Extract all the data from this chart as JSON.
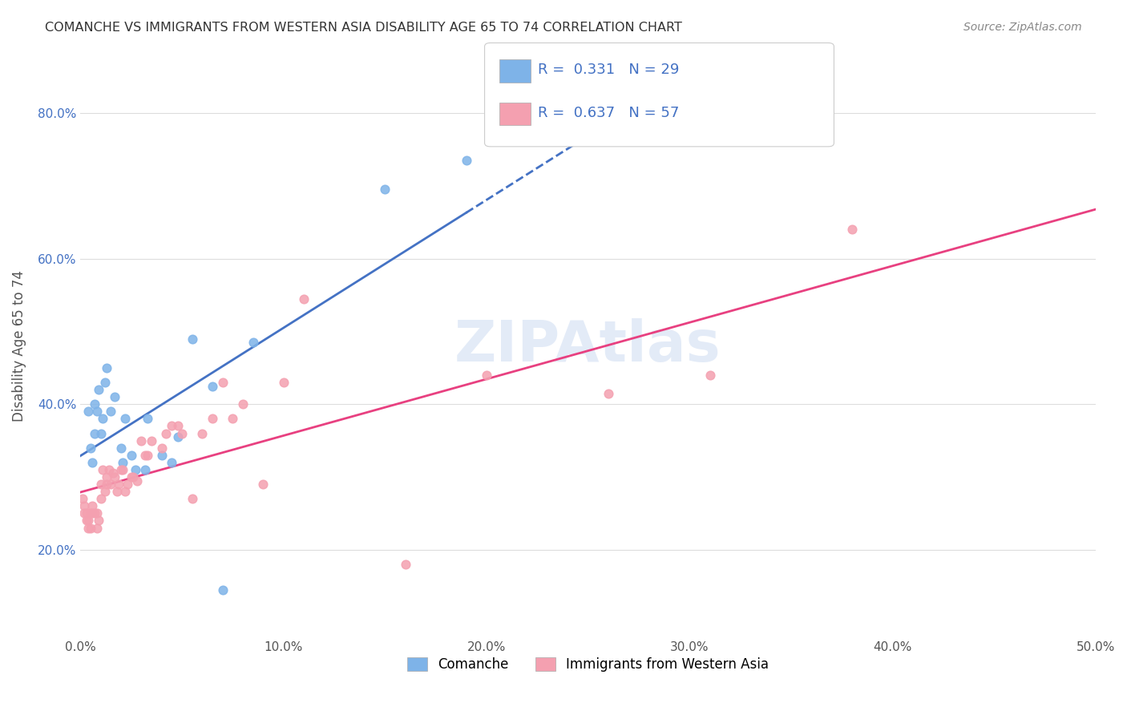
{
  "title": "COMANCHE VS IMMIGRANTS FROM WESTERN ASIA DISABILITY AGE 65 TO 74 CORRELATION CHART",
  "source": "Source: ZipAtlas.com",
  "xlabel": "",
  "ylabel": "Disability Age 65 to 74",
  "xlim": [
    0.0,
    0.5
  ],
  "ylim": [
    0.08,
    0.88
  ],
  "x_ticks": [
    0.0,
    0.1,
    0.2,
    0.3,
    0.4,
    0.5
  ],
  "x_tick_labels": [
    "0.0%",
    "10.0%",
    "20.0%",
    "30.0%",
    "40.0%",
    "50.0%"
  ],
  "y_ticks": [
    0.2,
    0.4,
    0.6,
    0.8
  ],
  "y_tick_labels": [
    "20.0%",
    "40.0%",
    "60.0%",
    "80.0%"
  ],
  "legend_labels": [
    "Comanche",
    "Immigrants from Western Asia"
  ],
  "R_comanche": 0.331,
  "N_comanche": 29,
  "R_immigrants": 0.637,
  "N_immigrants": 57,
  "comanche_color": "#7EB3E8",
  "immigrants_color": "#F4A0B0",
  "trendline_comanche_color": "#4472C4",
  "trendline_immigrants_color": "#E84080",
  "watermark": "ZIPAtlas",
  "comanche_x": [
    0.004,
    0.005,
    0.006,
    0.007,
    0.007,
    0.008,
    0.009,
    0.01,
    0.011,
    0.012,
    0.013,
    0.015,
    0.017,
    0.02,
    0.021,
    0.022,
    0.025,
    0.027,
    0.032,
    0.033,
    0.04,
    0.045,
    0.048,
    0.055,
    0.065,
    0.07,
    0.085,
    0.15,
    0.19
  ],
  "comanche_y": [
    0.39,
    0.34,
    0.32,
    0.36,
    0.4,
    0.39,
    0.42,
    0.36,
    0.38,
    0.43,
    0.45,
    0.39,
    0.41,
    0.34,
    0.32,
    0.38,
    0.33,
    0.31,
    0.31,
    0.38,
    0.33,
    0.32,
    0.355,
    0.49,
    0.425,
    0.145,
    0.485,
    0.695,
    0.735
  ],
  "immigrants_x": [
    0.001,
    0.002,
    0.002,
    0.003,
    0.003,
    0.004,
    0.004,
    0.005,
    0.005,
    0.006,
    0.006,
    0.007,
    0.008,
    0.008,
    0.009,
    0.01,
    0.01,
    0.011,
    0.012,
    0.013,
    0.013,
    0.014,
    0.015,
    0.016,
    0.017,
    0.018,
    0.019,
    0.02,
    0.021,
    0.022,
    0.023,
    0.025,
    0.026,
    0.028,
    0.03,
    0.032,
    0.033,
    0.035,
    0.04,
    0.042,
    0.045,
    0.048,
    0.05,
    0.055,
    0.06,
    0.065,
    0.07,
    0.075,
    0.08,
    0.09,
    0.1,
    0.11,
    0.16,
    0.2,
    0.26,
    0.31,
    0.38
  ],
  "immigrants_y": [
    0.27,
    0.26,
    0.25,
    0.24,
    0.25,
    0.23,
    0.24,
    0.25,
    0.23,
    0.25,
    0.26,
    0.25,
    0.25,
    0.23,
    0.24,
    0.29,
    0.27,
    0.31,
    0.28,
    0.29,
    0.3,
    0.31,
    0.29,
    0.305,
    0.3,
    0.28,
    0.29,
    0.31,
    0.31,
    0.28,
    0.29,
    0.3,
    0.3,
    0.295,
    0.35,
    0.33,
    0.33,
    0.35,
    0.34,
    0.36,
    0.37,
    0.37,
    0.36,
    0.27,
    0.36,
    0.38,
    0.43,
    0.38,
    0.4,
    0.29,
    0.43,
    0.545,
    0.18,
    0.44,
    0.415,
    0.44,
    0.64
  ],
  "background_color": "#FFFFFF",
  "grid_color": "#DDDDDD"
}
